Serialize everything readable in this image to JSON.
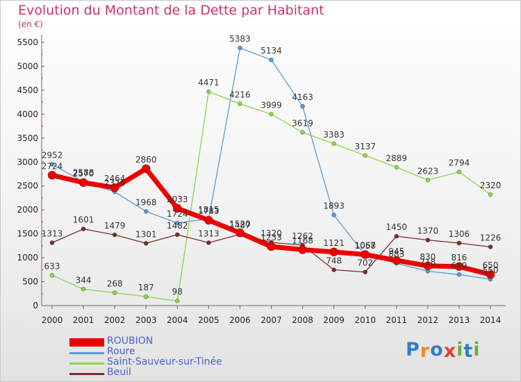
{
  "title": "Evolution du Montant de la Dette par Habitant",
  "subtitle": "(en €)",
  "logo": {
    "text": "Proxiti",
    "letters": [
      "P",
      "r",
      "o",
      "x",
      "i",
      "t",
      "i"
    ],
    "colors": [
      "#2f7fc8",
      "#f08a1c",
      "#2f7fc8",
      "#e83c2c",
      "#6cb33e",
      "#2f7fc8",
      "#6cb33e"
    ]
  },
  "chart_data": {
    "type": "line",
    "x": [
      2000,
      2001,
      2002,
      2003,
      2004,
      2005,
      2006,
      2007,
      2008,
      2009,
      2010,
      2011,
      2012,
      2013,
      2014
    ],
    "ylim": [
      0,
      5500
    ],
    "yticks": [
      0,
      500,
      1000,
      1500,
      2000,
      2500,
      3000,
      3500,
      4000,
      4500,
      5000,
      5500
    ],
    "grid": false,
    "legend_position": "bottom-left",
    "series": [
      {
        "name": "ROUBION",
        "color": "#ee0000",
        "labels": [
          "2724",
          "2570",
          "2464",
          "2860",
          "2033",
          "1783",
          "1520",
          "1233",
          "1168",
          "1121",
          "1067",
          "945",
          "830",
          "816",
          "650"
        ],
        "values": [
          2724,
          2570,
          2464,
          2860,
          2033,
          1783,
          1520,
          1233,
          1168,
          1121,
          1067,
          945,
          830,
          816,
          650
        ]
      },
      {
        "name": "Roure",
        "color": "#5b9bd5",
        "labels": [
          "2952",
          "2588",
          "2376",
          "1968",
          "1724",
          "1815",
          "5383",
          "5134",
          "4163",
          "1893",
          "1058",
          "883",
          "718",
          "649",
          "550"
        ],
        "values": [
          2952,
          2588,
          2376,
          1968,
          1724,
          1815,
          5383,
          5134,
          4163,
          1893,
          1058,
          883,
          718,
          649,
          550
        ]
      },
      {
        "name": "Saint-Sauveur-sur-Tinée",
        "color": "#8dd449",
        "labels": [
          "633",
          "344",
          "268",
          "187",
          "98",
          "4471",
          "4216",
          "3999",
          "3619",
          "3383",
          "3137",
          "2889",
          "2623",
          "2794",
          "2320"
        ],
        "values": [
          633,
          344,
          268,
          187,
          98,
          4471,
          4216,
          3999,
          3619,
          3383,
          3137,
          2889,
          2623,
          2794,
          2320
        ]
      },
      {
        "name": "Beuil",
        "color": "#7a2c2c",
        "labels": [
          "1313",
          "1601",
          "1479",
          "1301",
          "1482",
          "1313",
          "1487",
          "1320",
          "1262",
          "748",
          "702",
          "1450",
          "1370",
          "1306",
          "1226"
        ],
        "values": [
          1313,
          1601,
          1479,
          1301,
          1482,
          1313,
          1487,
          1320,
          1262,
          748,
          702,
          1450,
          1370,
          1306,
          1226
        ]
      }
    ]
  }
}
